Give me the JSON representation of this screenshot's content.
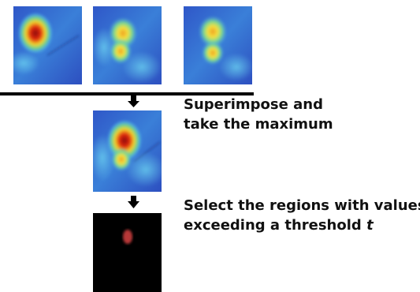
{
  "steps": [
    {
      "label_lines": [
        "Superimpose and",
        "take the maximum"
      ]
    },
    {
      "label_lines": [
        "Select the regions with values",
        "exceeding a threshold"
      ],
      "variable": "t"
    }
  ]
}
